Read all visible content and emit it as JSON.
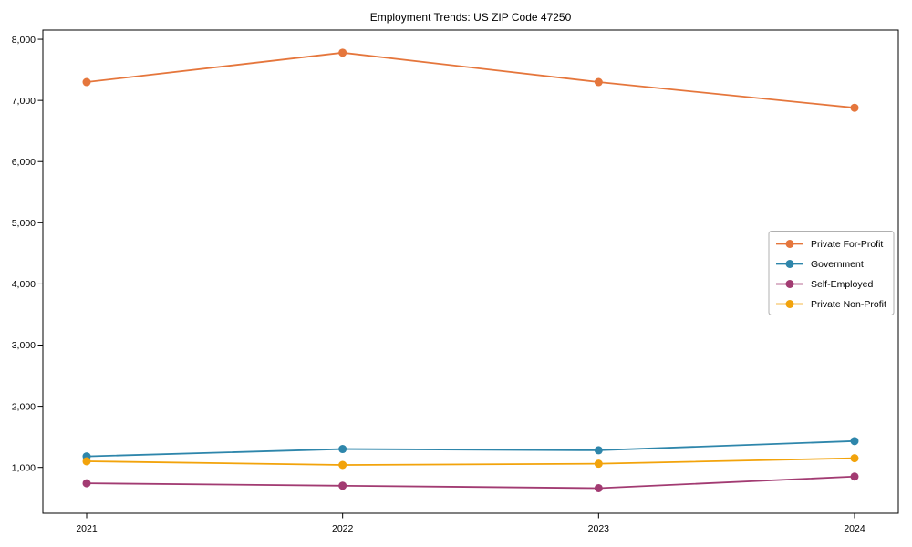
{
  "chart_data": {
    "type": "line",
    "title": "Employment Trends: US ZIP Code 47250",
    "x": [
      "2021",
      "2022",
      "2023",
      "2024"
    ],
    "series": [
      {
        "name": "Private For-Profit",
        "color": "#E5763C",
        "values": [
          7300,
          7780,
          7300,
          6880
        ]
      },
      {
        "name": "Government",
        "color": "#2E86AB",
        "values": [
          1180,
          1300,
          1280,
          1430
        ]
      },
      {
        "name": "Self-Employed",
        "color": "#A23B72",
        "values": [
          740,
          700,
          660,
          850
        ]
      },
      {
        "name": "Private Non-Profit",
        "color": "#F2A30B",
        "values": [
          1100,
          1040,
          1060,
          1150
        ]
      }
    ],
    "yticks": [
      1000,
      2000,
      3000,
      4000,
      5000,
      6000,
      7000,
      8000
    ],
    "ylim": [
      250,
      8150
    ],
    "xlabel": "",
    "ylabel": "",
    "grid": false,
    "legend_position": "inside-right-center"
  }
}
